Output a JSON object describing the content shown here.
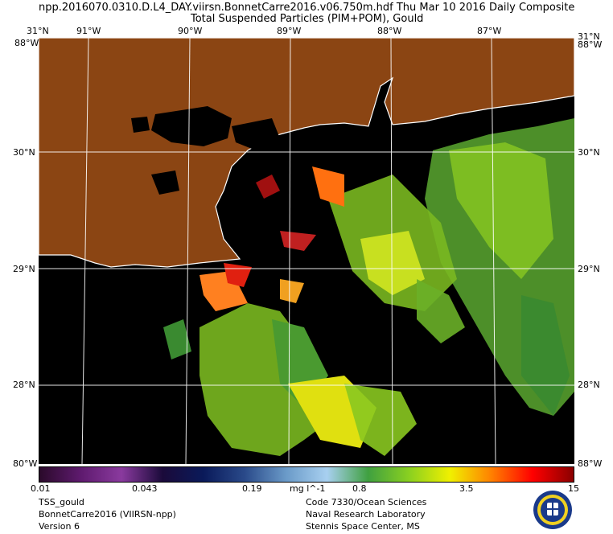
{
  "header": {
    "line1": "npp.2016070.0310.D.L4_DAY.viirsn.BonnetCarre2016.v06.750m.hdf    Thu Mar 10 2016 Daily Composite",
    "line2": "Total Suspended Particles (PIM+POM), Gould"
  },
  "map": {
    "lat_labels": [
      "31°N",
      "30°N",
      "29°N",
      "28°N"
    ],
    "lon_labels": [
      "91°W",
      "90°W",
      "89°W",
      "88°W",
      "87°W"
    ],
    "corner_top_left": "31°N",
    "corner_top_left_b": "88°W",
    "corner_top_right": "31°N",
    "corner_top_right_b": "88°W",
    "corner_bottom_left": "80°W",
    "corner_bottom_right": "88°W",
    "colors": {
      "land": "#8b4513",
      "water_nodata": "#000000",
      "coast": "#ffffff",
      "grid": "#ffffff"
    }
  },
  "colorbar": {
    "ticks": [
      "0.01",
      "0.043",
      "0.19",
      "mg l^-1",
      "0.8",
      "3.5",
      "15"
    ],
    "colors": [
      "#2a0a2a",
      "#5e1a6e",
      "#8a3a9e",
      "#1a0a3a",
      "#0a1a5a",
      "#2a4a8a",
      "#6a9ac8",
      "#a8d0f0",
      "#40a040",
      "#8ad020",
      "#f0f000",
      "#ff8000",
      "#ff0000",
      "#8a0000"
    ]
  },
  "footer": {
    "left": [
      "TSS_gould",
      "BonnetCarre2016 (VIIRSN-npp)",
      "Version 6"
    ],
    "right": [
      "Code 7330/Ocean Sciences",
      "Naval Research Laboratory",
      "Stennis Space Center, MS"
    ],
    "logo": "nrl-seal-icon"
  }
}
